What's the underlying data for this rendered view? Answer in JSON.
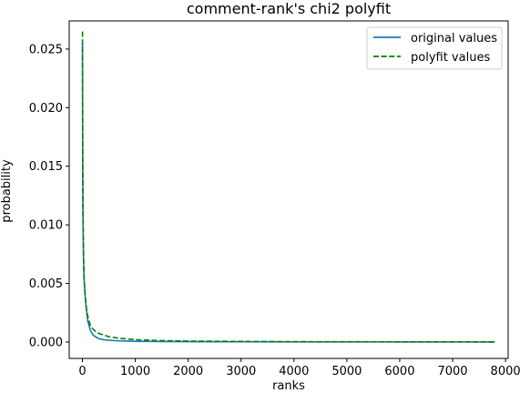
{
  "chart_data": {
    "type": "line",
    "title": "comment-rank's chi2 polyfit",
    "xlabel": "ranks",
    "ylabel": "probability",
    "xlim": [
      -250,
      8050
    ],
    "ylim": [
      -0.0014,
      0.0274
    ],
    "xticks": [
      0,
      1000,
      2000,
      3000,
      4000,
      5000,
      6000,
      7000,
      8000
    ],
    "xtick_labels": [
      "0",
      "1000",
      "2000",
      "3000",
      "4000",
      "5000",
      "6000",
      "7000",
      "8000"
    ],
    "yticks": [
      0.0,
      0.005,
      0.01,
      0.015,
      0.02,
      0.025
    ],
    "ytick_labels": [
      "0.000",
      "0.005",
      "0.010",
      "0.015",
      "0.020",
      "0.025"
    ],
    "grid": false,
    "legend_position": "top-right",
    "series": [
      {
        "name": "original values",
        "color": "#1f77b4",
        "style": "solid",
        "x": [
          1,
          5,
          10,
          20,
          30,
          50,
          75,
          100,
          150,
          200,
          250,
          300,
          400,
          500,
          700,
          1000,
          1500,
          2000,
          3000,
          4000,
          5000,
          6000,
          7000,
          7800
        ],
        "y": [
          0.0255,
          0.0155,
          0.011,
          0.0072,
          0.0055,
          0.004,
          0.0028,
          0.0018,
          0.001,
          0.0006,
          0.00045,
          0.0003,
          0.0002,
          0.00015,
          0.0001,
          6e-05,
          4e-05,
          3e-05,
          2e-05,
          1.5e-05,
          1e-05,
          1e-05,
          8e-06,
          5e-06
        ]
      },
      {
        "name": "polyfit values",
        "color": "#008000",
        "style": "dashed",
        "x": [
          1,
          5,
          10,
          20,
          30,
          50,
          75,
          100,
          150,
          200,
          250,
          300,
          400,
          500,
          700,
          1000,
          1500,
          2000,
          3000,
          4000,
          5000,
          6000,
          7000,
          7800
        ],
        "y": [
          0.0265,
          0.0175,
          0.0115,
          0.0075,
          0.0056,
          0.004,
          0.0029,
          0.0022,
          0.0014,
          0.0011,
          0.0009,
          0.00075,
          0.0006,
          0.00045,
          0.00032,
          0.0002,
          0.00012,
          8e-05,
          5e-05,
          3e-05,
          2e-05,
          1.5e-05,
          1e-05,
          8e-06
        ]
      }
    ]
  }
}
